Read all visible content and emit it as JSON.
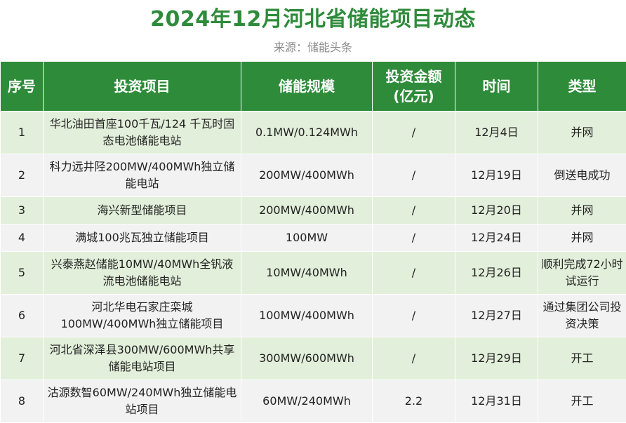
{
  "title": "2024年12月河北省储能项目动态",
  "source": "来源：储能头条",
  "colors": {
    "accent": "#2e8b3a",
    "row_odd": "#e2efda",
    "row_even": "#f2f2f2",
    "source_text": "#8a8a8a"
  },
  "table": {
    "headers": [
      "序号",
      "投资项目",
      "储能规模",
      "投资金额(亿元)",
      "时间",
      "类型"
    ],
    "rows": [
      [
        "1",
        "华北油田首座100千瓦/124 千瓦时固态电池储能电站",
        "0.1MW/0.124MWh",
        "/",
        "12月4日",
        "并网"
      ],
      [
        "2",
        "科力远井陉200MW/400MWh独立储能电站",
        "200MW/400MWh",
        "/",
        "12月19日",
        "倒送电成功"
      ],
      [
        "3",
        "海兴新型储能项目",
        "200MW/400MWh",
        "/",
        "12月20日",
        "并网"
      ],
      [
        "4",
        "满城100兆瓦独立储能项目",
        "100MW",
        "/",
        "12月24日",
        "并网"
      ],
      [
        "5",
        "兴泰燕赵储能10MW/40MWh全钒液流电池储能电站",
        "10MW/40MWh",
        "/",
        "12月26日",
        "顺利完成72小时试运行"
      ],
      [
        "6",
        "河北华电石家庄栾城100MW/400MWh独立储能项目",
        "100MW/400MWh",
        "/",
        "12月27日",
        "通过集团公司投资决策"
      ],
      [
        "7",
        "河北省深泽县300MW/600MWh共享储能电站项目",
        "300MW/600MWh",
        "/",
        "12月29日",
        "开工"
      ],
      [
        "8",
        "沽源数智60MW/240MWh独立储能电站项目",
        "60MW/240MWh",
        "2.2",
        "12月31日",
        "开工"
      ]
    ]
  }
}
